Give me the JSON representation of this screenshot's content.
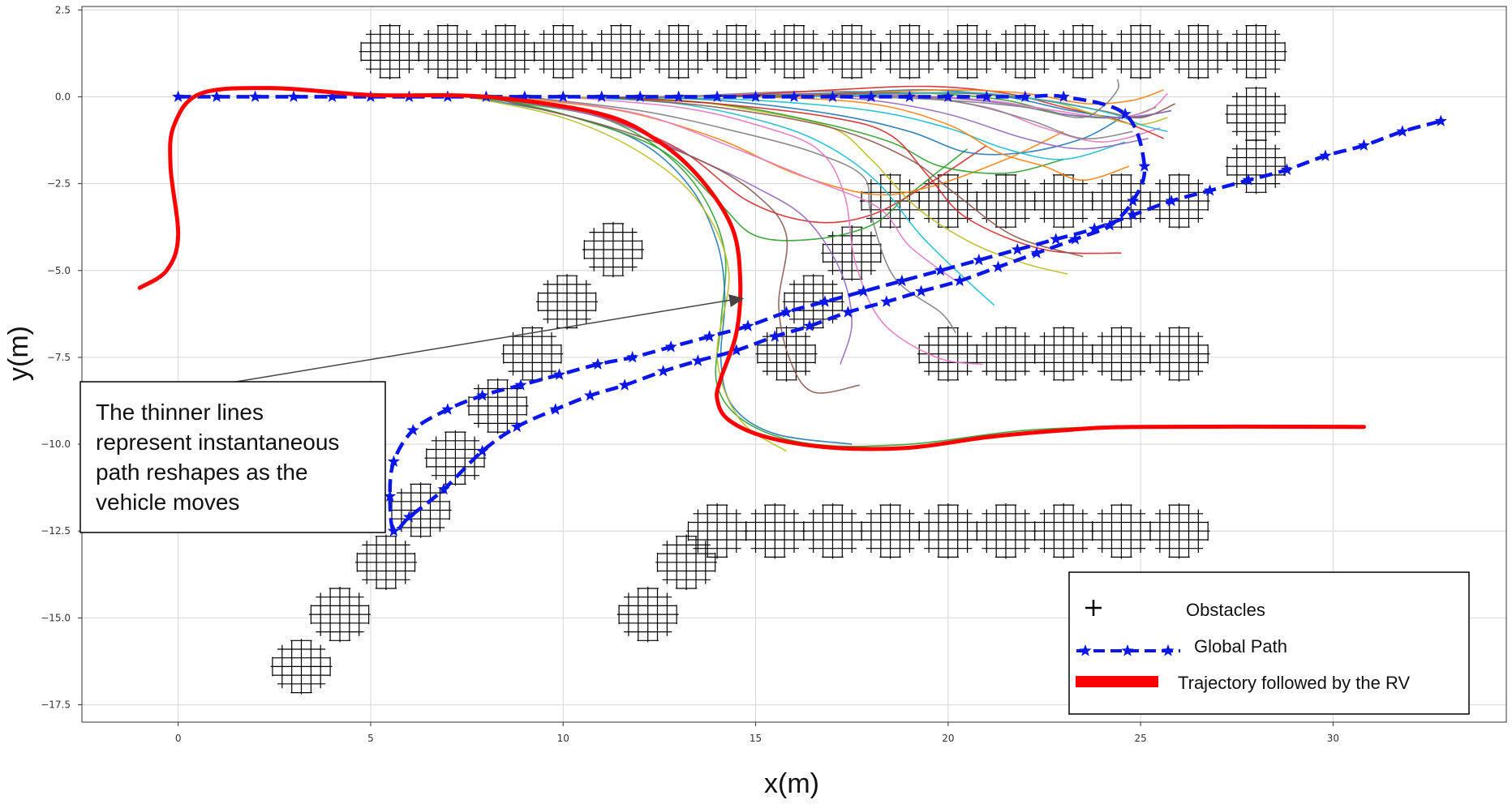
{
  "chart_data": {
    "type": "line",
    "xlabel": "x(m)",
    "ylabel": "y(m)",
    "xlim": [
      -2.5,
      34.5
    ],
    "ylim": [
      -18,
      2.6
    ],
    "xticks": [
      0,
      5,
      10,
      15,
      20,
      25,
      30
    ],
    "xtick_labels": [
      "0",
      "5",
      "10",
      "15",
      "20",
      "25",
      "30"
    ],
    "yticks": [
      2.5,
      0.0,
      -2.5,
      -5.0,
      -7.5,
      -10.0,
      -12.5,
      -15.0,
      -17.5
    ],
    "ytick_labels": [
      "2.5",
      "0.0",
      "−2.5",
      "−5.0",
      "−7.5",
      "−10.0",
      "−12.5",
      "−15.0",
      "−17.5"
    ],
    "grid": true,
    "legend_position": "bottom-right",
    "legend": [
      {
        "label": "Obstacles",
        "marker": "+",
        "color": "#000000"
      },
      {
        "label": "Global Path",
        "style": "dashed-star",
        "color": "#0a17e8"
      },
      {
        "label": "Trajectory followed by the RV",
        "style": "solid-thick",
        "color": "#ff0000"
      }
    ],
    "annotation": {
      "text_lines": [
        "The thinner lines",
        "represent instantaneous",
        "path reshapes as the",
        "vehicle moves"
      ],
      "arrow_target": [
        14.7,
        -5.8
      ]
    },
    "obstacles": {
      "marker": "+",
      "color": "#000000",
      "clusters": [
        [
          5.5,
          1.3
        ],
        [
          7,
          1.3
        ],
        [
          8.5,
          1.3
        ],
        [
          10,
          1.3
        ],
        [
          11.5,
          1.3
        ],
        [
          13,
          1.3
        ],
        [
          14.5,
          1.3
        ],
        [
          16,
          1.3
        ],
        [
          17.5,
          1.3
        ],
        [
          19,
          1.3
        ],
        [
          20.5,
          1.3
        ],
        [
          22,
          1.3
        ],
        [
          23.5,
          1.3
        ],
        [
          25,
          1.3
        ],
        [
          26.5,
          1.3
        ],
        [
          28,
          1.3
        ],
        [
          28,
          -0.5
        ],
        [
          28,
          -2.0
        ],
        [
          18.5,
          -3.0
        ],
        [
          20,
          -3.0
        ],
        [
          21.5,
          -3.0
        ],
        [
          23,
          -3.0
        ],
        [
          24.5,
          -3.0
        ],
        [
          26,
          -3.0
        ],
        [
          17.5,
          -4.5
        ],
        [
          11.3,
          -4.4
        ],
        [
          16.5,
          -5.9
        ],
        [
          10.1,
          -5.9
        ],
        [
          9.2,
          -7.4
        ],
        [
          15.8,
          -7.4
        ],
        [
          20,
          -7.4
        ],
        [
          21.5,
          -7.4
        ],
        [
          23,
          -7.4
        ],
        [
          24.5,
          -7.4
        ],
        [
          26,
          -7.4
        ],
        [
          8.3,
          -8.9
        ],
        [
          7.2,
          -10.4
        ],
        [
          6.3,
          -11.9
        ],
        [
          5.4,
          -13.4
        ],
        [
          4.2,
          -14.9
        ],
        [
          3.2,
          -16.4
        ],
        [
          14,
          -12.5
        ],
        [
          15.5,
          -12.5
        ],
        [
          17,
          -12.5
        ],
        [
          18.5,
          -12.5
        ],
        [
          20,
          -12.5
        ],
        [
          21.5,
          -12.5
        ],
        [
          23,
          -12.5
        ],
        [
          24.5,
          -12.5
        ],
        [
          26,
          -12.5
        ],
        [
          13.2,
          -13.4
        ],
        [
          12.2,
          -14.9
        ]
      ]
    },
    "series": [
      {
        "name": "Global Path",
        "color": "#0a17e8",
        "x": [
          0,
          1,
          2,
          3,
          4,
          5,
          6,
          7,
          8,
          9,
          10,
          11,
          12,
          13,
          14,
          15,
          16,
          17,
          18,
          19,
          20,
          21,
          22,
          23,
          24.6,
          25.1,
          24.8,
          24.2,
          23.3,
          22.3,
          21.3,
          20.3,
          19.3,
          18.4,
          17.4,
          16.4,
          15.5,
          14.5,
          13.5,
          12.6,
          11.6,
          10.7,
          9.8,
          8.8,
          7.9,
          6.9,
          6.0,
          5.6,
          5.5,
          5.6,
          6.1,
          7.0,
          7.9,
          8.9,
          9.9,
          10.9,
          11.8,
          12.8,
          13.8,
          14.8,
          15.8,
          16.8,
          17.8,
          18.8,
          19.8,
          20.8,
          21.8,
          22.8,
          23.8,
          24.8,
          25.8,
          26.8,
          27.8,
          28.8,
          29.8,
          30.8,
          31.8,
          32.8
        ],
        "y": [
          0,
          0,
          0,
          0,
          0,
          0,
          0,
          0,
          0,
          0,
          0,
          0,
          0,
          0,
          0,
          0,
          0,
          0,
          0,
          0,
          0,
          0,
          0,
          0,
          -0.5,
          -2.0,
          -3.0,
          -3.7,
          -4.1,
          -4.5,
          -4.9,
          -5.3,
          -5.6,
          -5.9,
          -6.2,
          -6.6,
          -6.9,
          -7.3,
          -7.6,
          -7.9,
          -8.3,
          -8.6,
          -9.0,
          -9.5,
          -10.2,
          -11.3,
          -12.1,
          -12.5,
          -11.5,
          -10.5,
          -9.6,
          -9.0,
          -8.6,
          -8.3,
          -8.0,
          -7.7,
          -7.5,
          -7.2,
          -6.9,
          -6.6,
          -6.2,
          -5.9,
          -5.6,
          -5.3,
          -5.0,
          -4.7,
          -4.4,
          -4.1,
          -3.8,
          -3.4,
          -3.0,
          -2.7,
          -2.4,
          -2.1,
          -1.7,
          -1.4,
          -1.0,
          -0.7
        ]
      },
      {
        "name": "Trajectory followed by the RV",
        "color": "#ff0000",
        "x": [
          -1,
          -0.3,
          0,
          -0.2,
          -0.1,
          0.6,
          2.5,
          5,
          8,
          11,
          12.5,
          13.6,
          14.4,
          14.6,
          14.5,
          14.1,
          14,
          14.3,
          15.3,
          17,
          19,
          21,
          23,
          25,
          30.8
        ],
        "y": [
          -5.5,
          -5.0,
          -4.0,
          -2.0,
          -0.8,
          0.1,
          0.25,
          0.05,
          0,
          -0.5,
          -1.3,
          -2.4,
          -3.8,
          -5.3,
          -6.8,
          -8.1,
          -8.7,
          -9.3,
          -9.8,
          -10.1,
          -10.1,
          -9.8,
          -9.6,
          -9.5,
          -9.5
        ]
      }
    ],
    "reshape_paths": [
      {
        "x": [
          7.5,
          9,
          11,
          12.5,
          13.6,
          14.2,
          14.1,
          14.0,
          14.8,
          16.5,
          19,
          22,
          25,
          30.8
        ],
        "y": [
          0,
          -0.2,
          -0.6,
          -1.5,
          -2.8,
          -4.5,
          -6.5,
          -8.3,
          -9.4,
          -10.0,
          -10.0,
          -9.6,
          -9.5,
          -9.5
        ],
        "color": "#2ca02c"
      },
      {
        "x": [
          7.5,
          10,
          12,
          13.3,
          14,
          14.2,
          14.1,
          14.4,
          15.5,
          17.5
        ],
        "y": [
          0,
          -0.5,
          -1.3,
          -2.6,
          -4.2,
          -5.8,
          -7.6,
          -8.9,
          -9.7,
          -10.0
        ],
        "color": "#1f77b4"
      },
      {
        "x": [
          7.5,
          10,
          12,
          13.5,
          14.3,
          14.0,
          14.6,
          15.8
        ],
        "y": [
          0,
          -0.6,
          -1.6,
          -3.0,
          -5.0,
          -7.5,
          -9.3,
          -10.2
        ],
        "color": "#bcbd22"
      },
      {
        "x": [
          8,
          10,
          12.5,
          14.0,
          15.0,
          16.5,
          18.0,
          19.0,
          20.5
        ],
        "y": [
          0,
          -0.5,
          -1.5,
          -3.0,
          -4.0,
          -4.1,
          -3.7,
          -2.8,
          -1.5
        ],
        "color": "#2ca02c"
      },
      {
        "x": [
          8,
          10.5,
          13,
          14.8,
          16.5,
          18.0,
          19.5,
          21.0
        ],
        "y": [
          0,
          -0.4,
          -1.5,
          -3.0,
          -3.6,
          -3.4,
          -2.5,
          -1.4
        ],
        "color": "#d62728"
      },
      {
        "x": [
          8,
          11,
          13.5,
          15.0,
          16.3,
          17.2,
          17.5,
          17.2
        ],
        "y": [
          0,
          -0.6,
          -1.8,
          -2.6,
          -3.5,
          -5.0,
          -6.5,
          -7.7
        ],
        "color": "#9467bd"
      },
      {
        "x": [
          8,
          11,
          13.5,
          15.0,
          15.8,
          15.6,
          15.9,
          16.5,
          17.7
        ],
        "y": [
          0,
          -0.8,
          -1.8,
          -2.8,
          -4.0,
          -6.0,
          -7.6,
          -8.5,
          -8.3
        ],
        "color": "#8c564b"
      },
      {
        "x": [
          8.5,
          11.5,
          14,
          16,
          18,
          19.5,
          21.5,
          23.0
        ],
        "y": [
          0,
          -0.4,
          -1.2,
          -2.2,
          -2.8,
          -2.6,
          -1.8,
          -1.0
        ],
        "color": "#ff7f0e"
      },
      {
        "x": [
          9,
          12,
          14.5,
          16.5,
          18.2,
          19.0,
          20.2
        ],
        "y": [
          0,
          -0.5,
          -1.5,
          -2.4,
          -3.2,
          -4.3,
          -5.3
        ],
        "color": "#e377c2"
      },
      {
        "x": [
          9,
          12,
          14.5,
          16.5,
          17.8,
          18.0,
          18.6,
          19.8,
          20.2
        ],
        "y": [
          0,
          -0.4,
          -1.0,
          -1.6,
          -2.3,
          -3.4,
          -5.2,
          -6.2,
          -6.8
        ],
        "color": "#7f7f7f"
      },
      {
        "x": [
          10,
          13,
          15.5,
          17,
          18.2,
          19.3,
          20.5,
          21.2
        ],
        "y": [
          0,
          -0.2,
          -0.8,
          -1.5,
          -2.5,
          -4.0,
          -5.3,
          -6.0
        ],
        "color": "#17becf"
      },
      {
        "x": [
          10,
          13,
          15,
          16.6,
          17.3,
          17.6,
          18.3,
          19.7,
          20.9
        ],
        "y": [
          0,
          -0.3,
          -0.8,
          -1.5,
          -2.8,
          -4.8,
          -6.5,
          -7.5,
          -7.7
        ],
        "color": "#e377c2"
      },
      {
        "x": [
          10,
          13,
          15,
          17,
          18.0,
          19.2,
          20.6,
          22.0,
          23.1
        ],
        "y": [
          0,
          -0.1,
          -0.4,
          -0.9,
          -1.8,
          -3.2,
          -4.2,
          -4.8,
          -5.1
        ],
        "color": "#bcbd22"
      },
      {
        "x": [
          11,
          14,
          16.5,
          18.5,
          19.8,
          21.5,
          23.0
        ],
        "y": [
          0,
          -0.2,
          -0.7,
          -1.3,
          -2.0,
          -2.2,
          -1.8
        ],
        "color": "#2ca02c"
      },
      {
        "x": [
          11,
          14,
          17,
          19.0,
          20.5,
          22.0,
          23.5,
          24.5
        ],
        "y": [
          0,
          -0.1,
          -0.5,
          -1.0,
          -1.6,
          -1.6,
          -1.2,
          -0.6
        ],
        "color": "#1f77b4"
      },
      {
        "x": [
          11,
          14,
          17,
          18.5,
          19.5,
          20.5,
          22.5,
          24.5
        ],
        "y": [
          0,
          -0.2,
          -0.6,
          -1.1,
          -2.3,
          -3.5,
          -4.4,
          -4.5
        ],
        "color": "#d62728"
      },
      {
        "x": [
          11,
          14,
          17,
          19,
          20.2,
          21.7,
          23.5
        ],
        "y": [
          0,
          -0.3,
          -0.9,
          -1.8,
          -2.8,
          -4.0,
          -4.6
        ],
        "color": "#8c564b"
      },
      {
        "x": [
          12,
          15,
          18,
          20,
          21.5,
          23.0,
          24.6
        ],
        "y": [
          0,
          -0.1,
          -0.4,
          -0.9,
          -1.5,
          -1.8,
          -1.3
        ],
        "color": "#17becf"
      },
      {
        "x": [
          12,
          15,
          18,
          20,
          21.3,
          22.5,
          23.5,
          24.7
        ],
        "y": [
          0,
          0,
          -0.2,
          -0.8,
          -1.6,
          -2.0,
          -2.4,
          -2.0
        ],
        "color": "#ff7f0e"
      },
      {
        "x": [
          12.5,
          15.5,
          18,
          20,
          22,
          23.5,
          25.2
        ],
        "y": [
          0,
          0.05,
          -0.1,
          -0.5,
          -1.2,
          -1.5,
          -1.2
        ],
        "color": "#9467bd"
      },
      {
        "x": [
          13,
          16,
          19,
          21,
          22.5,
          24.0,
          25.5
        ],
        "y": [
          0,
          0.1,
          0,
          -0.3,
          -0.9,
          -1.3,
          -0.9
        ],
        "color": "#e377c2"
      },
      {
        "x": [
          13,
          16,
          18.5,
          20.5,
          22.2,
          23.5,
          24.8
        ],
        "y": [
          0,
          0.15,
          0.1,
          -0.2,
          -0.7,
          -1.2,
          -1.0
        ],
        "color": "#7f7f7f"
      },
      {
        "x": [
          14,
          17,
          19.5,
          21.5,
          23,
          24.5,
          25.4
        ],
        "y": [
          0,
          0.1,
          0.1,
          -0.1,
          -0.5,
          -0.6,
          -0.3
        ],
        "color": "#2ca02c"
      },
      {
        "x": [
          14,
          17,
          19.5,
          21.5,
          23,
          24.5,
          25.6
        ],
        "y": [
          0,
          0.2,
          0.3,
          0.1,
          -0.3,
          -0.7,
          -1.2
        ],
        "color": "#d62728"
      },
      {
        "x": [
          14.5,
          17,
          19.5,
          21.5,
          23.2,
          24.6,
          25.8
        ],
        "y": [
          0,
          0.1,
          0.2,
          0,
          -0.4,
          -0.6,
          -0.4
        ],
        "color": "#1f77b4"
      },
      {
        "x": [
          15,
          17.5,
          20,
          22,
          23.6,
          24.8,
          25.6
        ],
        "y": [
          0,
          0.1,
          0.2,
          0.1,
          -0.2,
          -0.1,
          0.2
        ],
        "color": "#ff7f0e"
      },
      {
        "x": [
          15,
          18,
          20.5,
          22.5,
          23.8,
          24.9,
          25.7
        ],
        "y": [
          0,
          0.05,
          0.1,
          -0.1,
          -0.5,
          -0.8,
          -0.6
        ],
        "color": "#bcbd22"
      },
      {
        "x": [
          15.5,
          18,
          20.5,
          22.5,
          24.0,
          25.0,
          25.9
        ],
        "y": [
          0,
          0.1,
          0.1,
          -0.1,
          -0.4,
          -0.6,
          -0.2
        ],
        "color": "#8c564b"
      },
      {
        "x": [
          16,
          18.5,
          21,
          22.8,
          24.2,
          25.2,
          25.7
        ],
        "y": [
          0,
          0.05,
          -0.1,
          -0.4,
          -0.6,
          -0.4,
          0.1
        ],
        "color": "#e377c2"
      },
      {
        "x": [
          16.5,
          19,
          21,
          23,
          24.3,
          25.0,
          25.7
        ],
        "y": [
          0,
          0.1,
          0.1,
          -0.2,
          -0.5,
          -0.8,
          -1.0
        ],
        "color": "#17becf"
      },
      {
        "x": [
          17,
          19.5,
          21.5,
          23,
          24.4,
          25.3,
          25.8
        ],
        "y": [
          0,
          0,
          -0.2,
          -0.5,
          -0.6,
          -0.5,
          -0.4
        ],
        "color": "#9467bd"
      },
      {
        "x": [
          18,
          20,
          22,
          23.4,
          24.0,
          24.4,
          24.4
        ],
        "y": [
          0,
          -0.1,
          -0.3,
          -0.6,
          -0.3,
          0.2,
          0.5
        ],
        "color": "#7f7f7f"
      }
    ]
  }
}
